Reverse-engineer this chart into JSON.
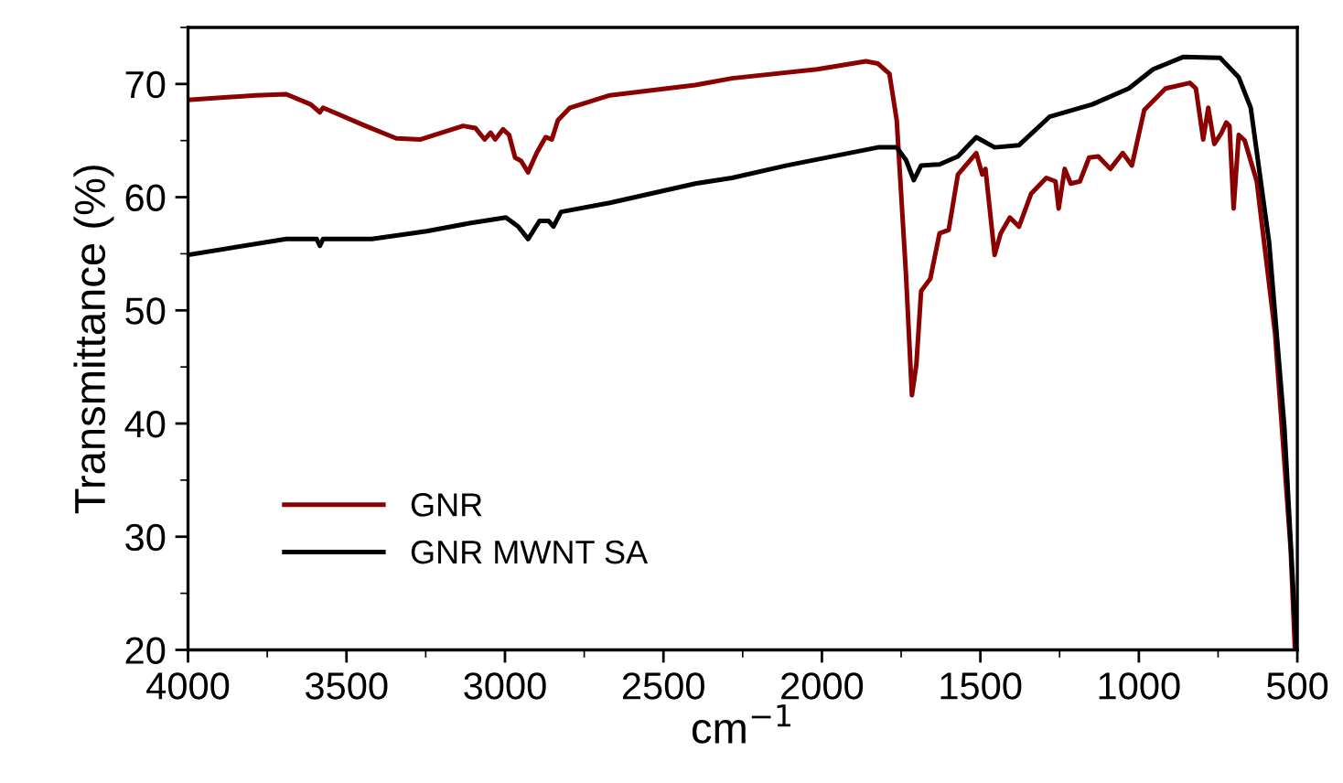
{
  "chart_data": {
    "type": "line",
    "xlabel": "cm$^{−1}$",
    "ylabel": "Transmittance (%)",
    "xlim": [
      4000,
      500
    ],
    "xticks": [
      4000,
      3500,
      3000,
      2500,
      2000,
      1500,
      1000,
      500
    ],
    "ylim": [
      20,
      75
    ],
    "yticks": [
      20,
      30,
      40,
      50,
      60,
      70
    ],
    "grid": false,
    "legend": "bottom left",
    "marker": "none",
    "line_style": "solid",
    "series": [
      {
        "name": "GNR",
        "color": "#8b0000",
        "x": [
          4000,
          3786,
          3690,
          3613,
          3584,
          3574,
          3440,
          3343,
          3266,
          3132,
          3093,
          3064,
          3045,
          3031,
          3006,
          2987,
          2968,
          2949,
          2927,
          2900,
          2872,
          2852,
          2833,
          2795,
          2669,
          2400,
          2284,
          2015,
          1861,
          1823,
          1787,
          1764,
          1735,
          1716,
          1702,
          1687,
          1658,
          1629,
          1600,
          1571,
          1513,
          1494,
          1484,
          1455,
          1436,
          1407,
          1378,
          1340,
          1292,
          1263,
          1253,
          1234,
          1215,
          1186,
          1157,
          1128,
          1090,
          1051,
          1022,
          983,
          916,
          839,
          820,
          797,
          781,
          762,
          739,
          724,
          714,
          701,
          685,
          666,
          628,
          570,
          521,
          508
        ],
        "values": [
          68.6,
          69.0,
          69.1,
          68.2,
          67.5,
          67.9,
          66.3,
          65.2,
          65.1,
          66.3,
          66.1,
          65.1,
          65.7,
          65.1,
          66.0,
          65.5,
          63.5,
          63.2,
          62.2,
          63.9,
          65.3,
          65.1,
          66.8,
          67.9,
          69.0,
          69.9,
          70.5,
          71.3,
          72.0,
          71.8,
          70.9,
          66.8,
          53.3,
          42.5,
          45.2,
          51.7,
          52.8,
          56.8,
          57.1,
          62.0,
          63.9,
          62.0,
          62.5,
          54.9,
          56.8,
          58.2,
          57.4,
          60.3,
          61.7,
          61.4,
          59.0,
          62.5,
          61.2,
          61.4,
          63.5,
          63.6,
          62.5,
          63.9,
          62.8,
          67.7,
          69.6,
          70.1,
          69.6,
          65.1,
          67.9,
          64.7,
          65.7,
          66.6,
          66.3,
          59.0,
          65.5,
          65.0,
          61.4,
          47.9,
          28.9,
          20.3
        ]
      },
      {
        "name": "GNR MWNT SA",
        "color": "#000000",
        "x": [
          4000,
          3690,
          3594,
          3584,
          3574,
          3420,
          3247,
          3112,
          2997,
          2958,
          2927,
          2891,
          2862,
          2847,
          2823,
          2669,
          2400,
          2284,
          2111,
          1823,
          1764,
          1735,
          1710,
          1687,
          1629,
          1571,
          1513,
          1455,
          1378,
          1282,
          1147,
          1032,
          955,
          859,
          743,
          685,
          647,
          589,
          541,
          503
        ],
        "values": [
          54.9,
          56.3,
          56.3,
          55.7,
          56.3,
          56.3,
          57.0,
          57.7,
          58.2,
          57.4,
          56.3,
          57.9,
          57.9,
          57.4,
          58.7,
          59.5,
          61.2,
          61.7,
          62.8,
          64.4,
          64.4,
          63.3,
          61.5,
          62.8,
          62.9,
          63.6,
          65.3,
          64.4,
          64.6,
          67.1,
          68.2,
          69.6,
          71.3,
          72.4,
          72.3,
          70.6,
          67.9,
          56.0,
          39.7,
          20.3
        ]
      }
    ]
  }
}
